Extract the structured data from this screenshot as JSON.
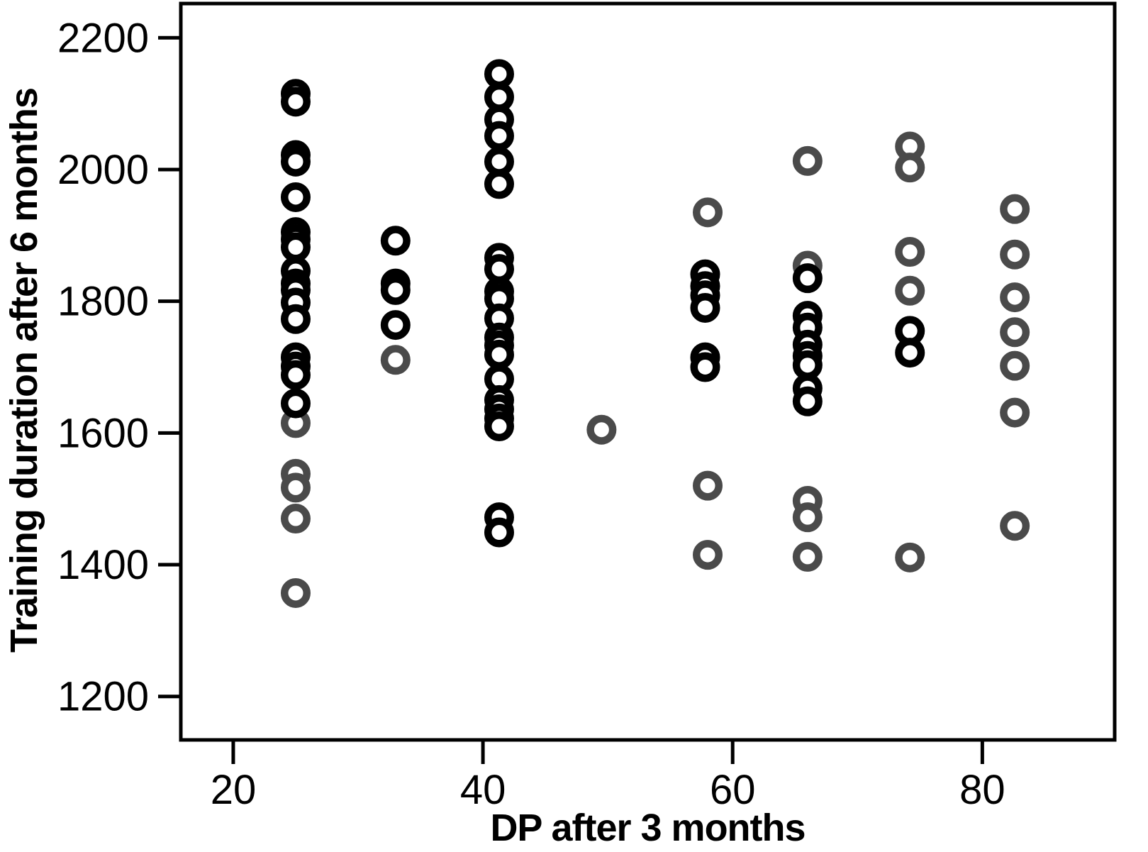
{
  "figure": {
    "background": "#ffffff",
    "frame_color": "#000000"
  },
  "chart_data": {
    "type": "scatter",
    "title": "",
    "xlabel": "DP after 3 months",
    "ylabel": "Training duration after 6 months",
    "x_ticks": [
      20,
      40,
      60,
      80
    ],
    "y_ticks": [
      1200,
      1400,
      1600,
      1800,
      2000,
      2200
    ],
    "xlim": [
      15.8,
      90.6
    ],
    "ylim": [
      1134,
      2252
    ],
    "grid": false,
    "legend": "none",
    "marker": {
      "shape": "open-circle",
      "outer_radius": 21,
      "stroke_width": 10.5,
      "fill": "#ffffff"
    },
    "series": [
      {
        "name": "gray",
        "color": "#4a4a4a",
        "points": [
          [
            25,
            1615
          ],
          [
            25,
            1538
          ],
          [
            25,
            1517
          ],
          [
            25,
            1470
          ],
          [
            25,
            1357
          ],
          [
            33,
            1711
          ],
          [
            49.5,
            1605
          ],
          [
            58,
            1935
          ],
          [
            58,
            1520
          ],
          [
            58,
            1415
          ],
          [
            66,
            2013
          ],
          [
            66,
            1854
          ],
          [
            66,
            1497
          ],
          [
            66,
            1472
          ],
          [
            66,
            1412
          ],
          [
            74.2,
            2035
          ],
          [
            74.2,
            2003
          ],
          [
            74.2,
            1875
          ],
          [
            74.2,
            1816
          ],
          [
            74.2,
            1411
          ],
          [
            82.6,
            1940
          ],
          [
            82.6,
            1871
          ],
          [
            82.6,
            1806
          ],
          [
            82.6,
            1753
          ],
          [
            82.6,
            1702
          ],
          [
            82.6,
            1631
          ],
          [
            82.6,
            1459
          ]
        ]
      },
      {
        "name": "black",
        "color": "#000000",
        "points": [
          [
            25,
            2115
          ],
          [
            25,
            2103
          ],
          [
            25,
            2022
          ],
          [
            25,
            2012
          ],
          [
            25,
            1958
          ],
          [
            25,
            1905
          ],
          [
            25,
            1894
          ],
          [
            25,
            1882
          ],
          [
            25,
            1846
          ],
          [
            25,
            1827
          ],
          [
            25,
            1817
          ],
          [
            25,
            1798
          ],
          [
            25,
            1773
          ],
          [
            25,
            1715
          ],
          [
            25,
            1701
          ],
          [
            25,
            1688
          ],
          [
            25,
            1645
          ],
          [
            33,
            1892
          ],
          [
            33,
            1827
          ],
          [
            33,
            1817
          ],
          [
            33,
            1764
          ],
          [
            41.3,
            2145
          ],
          [
            41.3,
            2110
          ],
          [
            41.3,
            2076
          ],
          [
            41.3,
            2051
          ],
          [
            41.3,
            2012
          ],
          [
            41.3,
            1978
          ],
          [
            41.3,
            1866
          ],
          [
            41.3,
            1849
          ],
          [
            41.3,
            1815
          ],
          [
            41.3,
            1804
          ],
          [
            41.3,
            1774
          ],
          [
            41.3,
            1745
          ],
          [
            41.3,
            1733
          ],
          [
            41.3,
            1719
          ],
          [
            41.3,
            1682
          ],
          [
            41.3,
            1650
          ],
          [
            41.3,
            1636
          ],
          [
            41.3,
            1622
          ],
          [
            41.3,
            1610
          ],
          [
            41.3,
            1472
          ],
          [
            41.3,
            1449
          ],
          [
            57.8,
            1841
          ],
          [
            57.8,
            1823
          ],
          [
            57.8,
            1809
          ],
          [
            57.8,
            1790
          ],
          [
            57.8,
            1715
          ],
          [
            57.8,
            1700
          ],
          [
            66,
            1835
          ],
          [
            66,
            1778
          ],
          [
            66,
            1760
          ],
          [
            66,
            1734
          ],
          [
            66,
            1717
          ],
          [
            66,
            1703
          ],
          [
            66,
            1668
          ],
          [
            66,
            1648
          ],
          [
            74.2,
            1755
          ],
          [
            74.2,
            1722
          ]
        ]
      }
    ]
  }
}
